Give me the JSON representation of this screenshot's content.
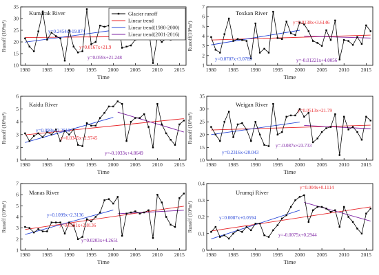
{
  "figure": {
    "xlabel_common": "Time"
  },
  "legend": {
    "items": [
      {
        "label": "Glacier runoff",
        "color": "#000000",
        "kind": "marker-line"
      },
      {
        "label": "Linear trend",
        "color": "#e8262a",
        "kind": "line"
      },
      {
        "label": "Linear trend(1980-2000)",
        "color": "#2a48d8",
        "kind": "line"
      },
      {
        "label": "Linear trend(2001-2016)",
        "color": "#7b1fa2",
        "kind": "line"
      }
    ]
  },
  "colors": {
    "series": "#000000",
    "trend": "#e8262a",
    "trend1": "#2a48d8",
    "trend2": "#7b1fa2"
  },
  "chart_data": [
    {
      "type": "line",
      "title": "Kumarak River",
      "ylabel": "Runoff (10⁸m³)",
      "xlim": [
        1979,
        2016.5
      ],
      "ylim": [
        10,
        35
      ],
      "yticks": [
        10,
        15,
        20,
        25,
        30,
        35
      ],
      "xticks": [
        1980,
        1985,
        1990,
        1995,
        2000,
        2005,
        2010,
        2015
      ],
      "x": [
        1980,
        1981,
        1982,
        1983,
        1984,
        1985,
        1986,
        1987,
        1988,
        1989,
        1990,
        1991,
        1992,
        1993,
        1994,
        1995,
        1996,
        1997,
        1998,
        1999,
        2000,
        2001,
        2002,
        2003,
        2004,
        2005,
        2006,
        2007,
        2008,
        2009,
        2010,
        2011,
        2012,
        2013,
        2014,
        2015,
        2016
      ],
      "y": [
        21.5,
        18,
        16,
        24.5,
        33,
        21,
        24,
        22.5,
        21.5,
        12,
        25,
        18,
        15.5,
        16,
        34,
        19,
        20,
        27,
        26.5,
        27,
        31,
        30.5,
        17.5,
        18,
        18.5,
        21,
        26,
        23,
        26,
        11,
        22,
        20,
        21.5,
        21,
        23,
        28,
        24
      ],
      "annotations": [
        {
          "text": "y=0.2454x+19.874",
          "color": "#2a48d8"
        },
        {
          "text": "y=0.0167x+21.9",
          "color": "#e8262a"
        },
        {
          "text": "y=0.059x+21.248",
          "color": "#7b1fa2"
        }
      ],
      "trends": [
        {
          "name": "Linear trend",
          "x0": 1980,
          "y0": 21.9,
          "x1": 2016,
          "y1": 22.5
        },
        {
          "name": "Linear trend(1980-2000)",
          "x0": 1980,
          "y0": 19.9,
          "x1": 2000,
          "y1": 25.0
        },
        {
          "name": "Linear trend(2001-2016)",
          "x0": 2001,
          "y0": 21.3,
          "x1": 2016,
          "y1": 22.2
        }
      ]
    },
    {
      "type": "line",
      "title": "Toxkan River",
      "ylabel": "Runoff(10⁸m³)",
      "xlim": [
        1979,
        2016.5
      ],
      "ylim": [
        1,
        7
      ],
      "yticks": [
        1,
        2,
        3,
        4,
        5,
        6,
        7
      ],
      "xticks": [
        1980,
        1985,
        1990,
        1995,
        2000,
        2005,
        2010,
        2015
      ],
      "x": [
        1980,
        1981,
        1982,
        1983,
        1984,
        1985,
        1986,
        1987,
        1988,
        1989,
        1990,
        1991,
        1992,
        1993,
        1994,
        1995,
        1996,
        1997,
        1998,
        1999,
        2000,
        2001,
        2002,
        2003,
        2004,
        2005,
        2006,
        2007,
        2008,
        2009,
        2010,
        2011,
        2012,
        2013,
        2014,
        2015,
        2016
      ],
      "y": [
        3.9,
        2.6,
        2.3,
        4.2,
        5.8,
        3.5,
        3.7,
        3.6,
        3.5,
        1.7,
        5.3,
        2.3,
        2.7,
        2.3,
        6.5,
        3.8,
        3.7,
        5.5,
        4.3,
        4.1,
        5.4,
        5.2,
        4.5,
        3.5,
        3.3,
        3.0,
        4.6,
        3.6,
        5.6,
        1.6,
        3.6,
        3.5,
        3.1,
        3.9,
        3.2,
        5.1,
        4.5
      ],
      "annotations": [
        {
          "text": "y=0.0138x+3.6146",
          "color": "#e8262a"
        },
        {
          "text": "y=0.0707x+3.0789",
          "color": "#2a48d8"
        },
        {
          "text": "y=-0.01221x+4.0056",
          "color": "#7b1fa2"
        }
      ],
      "trends": [
        {
          "name": "Linear trend",
          "x0": 1980,
          "y0": 3.6,
          "x1": 2016,
          "y1": 4.1
        },
        {
          "name": "Linear trend(1980-2000)",
          "x0": 1980,
          "y0": 3.1,
          "x1": 2000,
          "y1": 4.6
        },
        {
          "name": "Linear trend(2001-2016)",
          "x0": 2001,
          "y0": 4.0,
          "x1": 2016,
          "y1": 3.8
        }
      ]
    },
    {
      "type": "line",
      "title": "Kaidu River",
      "ylabel": "Runoff (10⁸m³)",
      "xlim": [
        1979,
        2016.5
      ],
      "ylim": [
        1,
        6
      ],
      "yticks": [
        1,
        2,
        3,
        4,
        5,
        6
      ],
      "xticks": [
        1980,
        1985,
        1990,
        1995,
        2000,
        2005,
        2010,
        2015
      ],
      "x": [
        1980,
        1981,
        1982,
        1983,
        1984,
        1985,
        1986,
        1987,
        1988,
        1989,
        1990,
        1991,
        1992,
        1993,
        1994,
        1995,
        1996,
        1997,
        1998,
        1999,
        2000,
        2001,
        2002,
        2003,
        2004,
        2005,
        2006,
        2007,
        2008,
        2009,
        2010,
        2011,
        2012,
        2013,
        2014,
        2015,
        2016
      ],
      "y": [
        3.1,
        2.5,
        2.9,
        3.1,
        2.8,
        3.2,
        3.0,
        3.4,
        2.5,
        3.3,
        3.0,
        3.4,
        2.2,
        2.1,
        3.9,
        3.7,
        3.7,
        4.3,
        4.7,
        5.2,
        5.2,
        5.6,
        5.4,
        2.5,
        4.0,
        4.3,
        4.3,
        4.6,
        3.6,
        2.0,
        5.4,
        3.8,
        3.1,
        2.6,
        2.2,
        3.8,
        4.1
      ],
      "annotations": [
        {
          "text": "y=0.098x+2.2819",
          "color": "#2a48d8"
        },
        {
          "text": "y=0.0345x+2.9745",
          "color": "#e8262a"
        },
        {
          "text": "y=-0.1033x+4.8649",
          "color": "#7b1fa2"
        }
      ],
      "trends": [
        {
          "name": "Linear trend",
          "x0": 1980,
          "y0": 2.98,
          "x1": 2016,
          "y1": 4.25
        },
        {
          "name": "Linear trend(1980-2000)",
          "x0": 1980,
          "y0": 2.38,
          "x1": 2000,
          "y1": 4.35
        },
        {
          "name": "Linear trend(2001-2016)",
          "x0": 2001,
          "y0": 4.76,
          "x1": 2016,
          "y1": 3.2
        }
      ]
    },
    {
      "type": "line",
      "title": "Weigan River",
      "ylabel": "Runoff (10⁸m³)",
      "xlim": [
        1979,
        2016.5
      ],
      "ylim": [
        10,
        35
      ],
      "yticks": [
        10,
        15,
        20,
        25,
        30,
        35
      ],
      "xticks": [
        1980,
        1985,
        1990,
        1995,
        2000,
        2005,
        2010,
        2015
      ],
      "x": [
        1980,
        1981,
        1982,
        1983,
        1984,
        1985,
        1986,
        1987,
        1988,
        1989,
        1990,
        1991,
        1992,
        1993,
        1994,
        1995,
        1996,
        1997,
        1998,
        1999,
        2000,
        2001,
        2002,
        2003,
        2004,
        2005,
        2006,
        2007,
        2008,
        2009,
        2010,
        2011,
        2012,
        2013,
        2014,
        2015,
        2016
      ],
      "y": [
        23,
        20,
        17.5,
        25,
        29,
        19,
        24,
        24.5,
        22,
        17.5,
        25,
        20,
        16,
        15.5,
        32,
        20,
        21,
        27,
        27.5,
        27.5,
        30,
        27,
        28.5,
        17,
        18.5,
        21,
        22.5,
        23,
        28,
        12,
        27,
        22,
        23,
        21,
        18,
        27,
        25.5
      ],
      "annotations": [
        {
          "text": "y=0.0513x+21.79",
          "color": "#e8262a"
        },
        {
          "text": "y=0.2316x+20.043",
          "color": "#2a48d8"
        },
        {
          "text": "y=-0.087x+23.733",
          "color": "#7b1fa2"
        }
      ],
      "trends": [
        {
          "name": "Linear trend",
          "x0": 1980,
          "y0": 21.8,
          "x1": 2016,
          "y1": 23.7
        },
        {
          "name": "Linear trend(1980-2000)",
          "x0": 1980,
          "y0": 20.0,
          "x1": 2000,
          "y1": 24.9
        },
        {
          "name": "Linear trend(2001-2016)",
          "x0": 2001,
          "y0": 23.6,
          "x1": 2016,
          "y1": 22.3
        }
      ]
    },
    {
      "type": "line",
      "title": "Manas River",
      "ylabel": "Runoff (10⁸m³)",
      "xlim": [
        1979,
        2016.5
      ],
      "ylim": [
        1,
        7
      ],
      "yticks": [
        1,
        2,
        3,
        4,
        5,
        6,
        7
      ],
      "xticks": [
        1980,
        1985,
        1990,
        1995,
        2000,
        2005,
        2010,
        2015
      ],
      "x": [
        1980,
        1981,
        1982,
        1983,
        1984,
        1985,
        1986,
        1987,
        1988,
        1989,
        1990,
        1991,
        1992,
        1993,
        1994,
        1995,
        1996,
        1997,
        1998,
        1999,
        2000,
        2001,
        2002,
        2003,
        2004,
        2005,
        2006,
        2007,
        2008,
        2009,
        2010,
        2011,
        2012,
        2013,
        2014,
        2015,
        2016
      ],
      "y": [
        3.1,
        3.0,
        2.6,
        2.9,
        2.7,
        2.7,
        3.5,
        3.5,
        3.5,
        2.5,
        3.5,
        3.2,
        2.0,
        2.2,
        3.8,
        3.6,
        4.0,
        4.4,
        5.5,
        5.6,
        5.2,
        5.8,
        2.3,
        4.3,
        4.4,
        4.5,
        4.3,
        4.4,
        4.6,
        2.1,
        6.0,
        5.3,
        4.0,
        3.3,
        3.1,
        5.7,
        6.1
      ],
      "annotations": [
        {
          "text": "y=0.1099x+2.3136",
          "color": "#2a48d8"
        },
        {
          "text": "y=0.0581x+2.8136",
          "color": "#e8262a"
        },
        {
          "text": "y=0.0203x+4.2651",
          "color": "#7b1fa2"
        }
      ],
      "trends": [
        {
          "name": "Linear trend",
          "x0": 1980,
          "y0": 2.87,
          "x1": 2016,
          "y1": 4.96
        },
        {
          "name": "Linear trend(1980-2000)",
          "x0": 1980,
          "y0": 2.42,
          "x1": 2000,
          "y1": 4.62
        },
        {
          "name": "Linear trend(2001-2016)",
          "x0": 2001,
          "y0": 4.28,
          "x1": 2016,
          "y1": 4.6
        }
      ]
    },
    {
      "type": "line",
      "title": "Urumqi River",
      "ylabel": "Runoff (10⁸m³)",
      "xlim": [
        1979,
        2016.5
      ],
      "ylim": [
        0,
        0.4
      ],
      "yticks": [
        0.0,
        0.1,
        0.2,
        0.3,
        0.4
      ],
      "xticks": [
        1980,
        1985,
        1990,
        1995,
        2000,
        2005,
        2010,
        2015
      ],
      "x": [
        1980,
        1981,
        1982,
        1983,
        1984,
        1985,
        1986,
        1987,
        1988,
        1989,
        1990,
        1991,
        1992,
        1993,
        1994,
        1995,
        1996,
        1997,
        1998,
        1999,
        2000,
        2001,
        2002,
        2003,
        2004,
        2005,
        2006,
        2007,
        2008,
        2009,
        2010,
        2011,
        2012,
        2013,
        2014,
        2015,
        2016
      ],
      "y": [
        0.11,
        0.14,
        0.08,
        0.09,
        0.07,
        0.1,
        0.12,
        0.11,
        0.14,
        0.12,
        0.16,
        0.16,
        0.09,
        0.08,
        0.12,
        0.15,
        0.19,
        0.21,
        0.26,
        0.3,
        0.32,
        0.33,
        0.17,
        0.24,
        0.26,
        0.26,
        0.25,
        0.23,
        0.24,
        0.14,
        0.26,
        0.2,
        0.17,
        0.13,
        0.1,
        0.22,
        0.25
      ],
      "annotations": [
        {
          "text": "y=0.004x+0.1114",
          "color": "#e8262a"
        },
        {
          "text": "y=0.0087x+0.0594",
          "color": "#2a48d8"
        },
        {
          "text": "y=-0.0075x+0.2944",
          "color": "#7b1fa2"
        }
      ],
      "trends": [
        {
          "name": "Linear trend",
          "x0": 1980,
          "y0": 0.115,
          "x1": 2016,
          "y1": 0.26
        },
        {
          "name": "Linear trend(1980-2000)",
          "x0": 1980,
          "y0": 0.068,
          "x1": 2000,
          "y1": 0.24
        },
        {
          "name": "Linear trend(2001-2016)",
          "x0": 2001,
          "y0": 0.287,
          "x1": 2016,
          "y1": 0.175
        }
      ]
    }
  ]
}
